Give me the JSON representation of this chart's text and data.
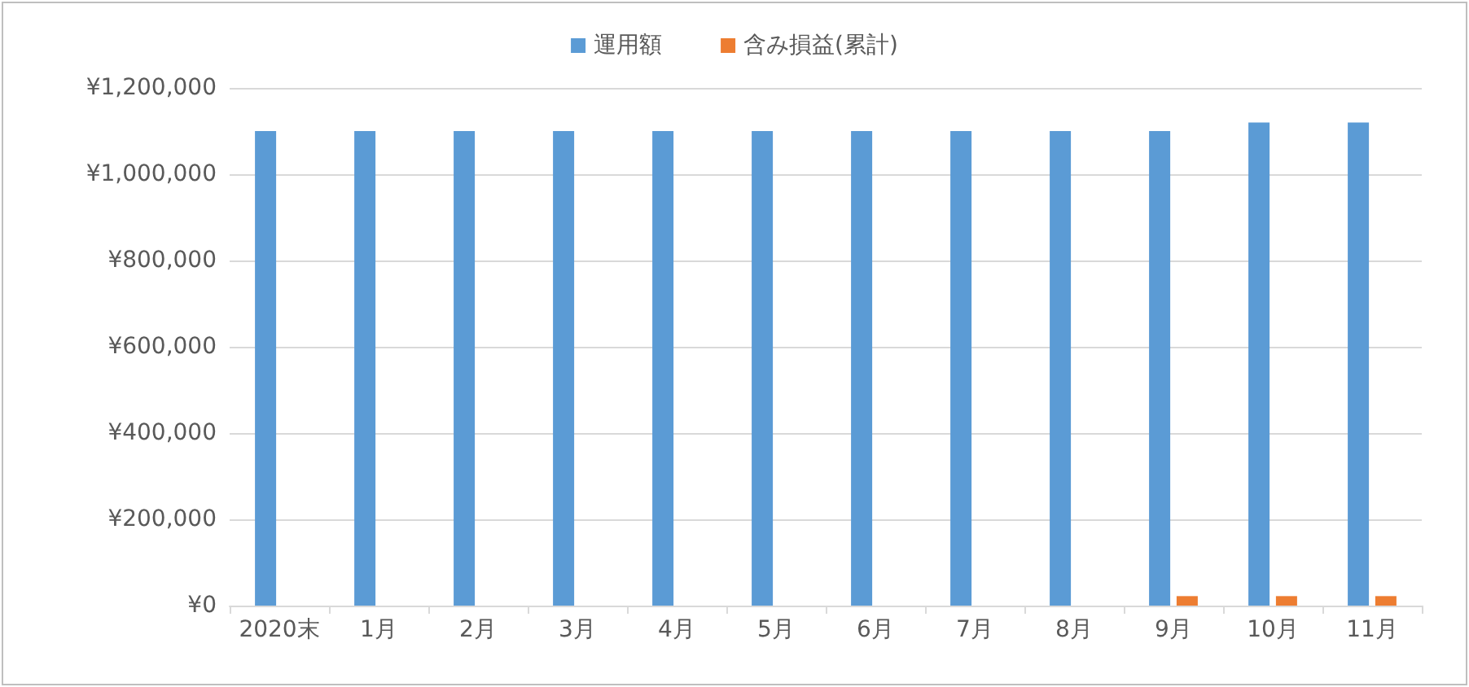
{
  "chart_data": {
    "type": "bar",
    "categories": [
      "2020末",
      "1月",
      "2月",
      "3月",
      "4月",
      "5月",
      "6月",
      "7月",
      "8月",
      "9月",
      "10月",
      "11月"
    ],
    "series": [
      {
        "name": "運用額",
        "color": "#5b9bd5",
        "values": [
          1100000,
          1100000,
          1100000,
          1100000,
          1100000,
          1100000,
          1100000,
          1100000,
          1100000,
          1100000,
          1120000,
          1120000
        ]
      },
      {
        "name": "含み損益(累計)",
        "color": "#ed7d31",
        "values": [
          0,
          0,
          0,
          0,
          0,
          0,
          0,
          0,
          0,
          22000,
          22000,
          22000
        ]
      }
    ],
    "ylim": [
      0,
      1200000
    ],
    "yticks": [
      {
        "value": 0,
        "label": "¥0"
      },
      {
        "value": 200000,
        "label": "¥200,000"
      },
      {
        "value": 400000,
        "label": "¥400,000"
      },
      {
        "value": 600000,
        "label": "¥600,000"
      },
      {
        "value": 800000,
        "label": "¥800,000"
      },
      {
        "value": 1000000,
        "label": "¥1,000,000"
      },
      {
        "value": 1200000,
        "label": "¥1,200,000"
      }
    ],
    "grid": "y",
    "legend": "top"
  }
}
